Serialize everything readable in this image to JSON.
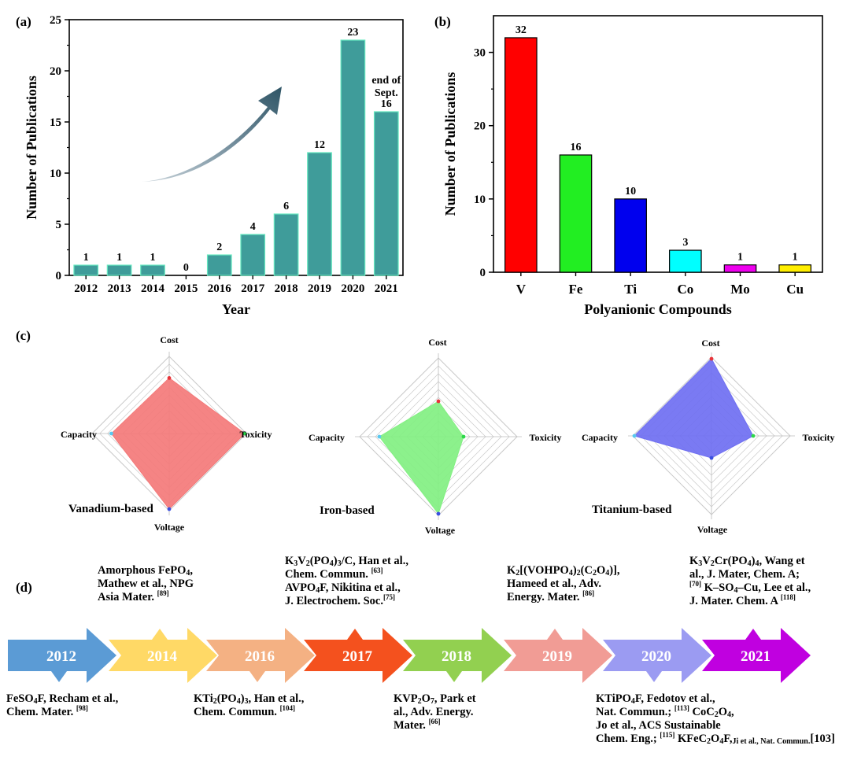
{
  "panel_labels": {
    "a": "(a)",
    "b": "(b)",
    "c": "(c)",
    "d": "(d)"
  },
  "chart_data": [
    {
      "id": "a",
      "type": "bar",
      "title": "",
      "xlabel": "Year",
      "ylabel": "Number of Publications",
      "categories": [
        "2012",
        "2013",
        "2014",
        "2015",
        "2016",
        "2017",
        "2018",
        "2019",
        "2020",
        "2021"
      ],
      "values": [
        1,
        1,
        1,
        0,
        2,
        4,
        6,
        12,
        23,
        16
      ],
      "ylim": [
        0,
        25
      ],
      "yticks": [
        0,
        5,
        10,
        15,
        20,
        25
      ],
      "bar_color": "#3f9c9a",
      "annotation": [
        "end of",
        "Sept."
      ]
    },
    {
      "id": "b",
      "type": "bar",
      "title": "",
      "xlabel": "Polyanionic Compounds",
      "ylabel": "Number of Publications",
      "categories": [
        "V",
        "Fe",
        "Ti",
        "Co",
        "Mo",
        "Cu"
      ],
      "values": [
        32,
        16,
        10,
        3,
        1,
        1
      ],
      "colors": [
        "#ff0000",
        "#22ee22",
        "#0000ee",
        "#00ffff",
        "#ee00ee",
        "#ffee00"
      ],
      "ylim": [
        0,
        35
      ],
      "yticks": [
        0,
        10,
        20,
        30
      ]
    },
    {
      "id": "c",
      "type": "radar",
      "axes": [
        "Cost",
        "Toxicity",
        "Voltage",
        "Capacity"
      ],
      "max": 1,
      "series": [
        {
          "name": "Vanadium-based",
          "values": [
            0.72,
            0.98,
            0.98,
            0.75
          ],
          "color": "#f47a7a"
        },
        {
          "name": "Iron-based",
          "values": [
            0.45,
            0.32,
            0.98,
            0.75
          ],
          "color": "#82f082"
        },
        {
          "name": "Titanium-based",
          "values": [
            0.98,
            0.53,
            0.28,
            0.98
          ],
          "color": "#6f6ff2"
        }
      ]
    }
  ],
  "timeline": {
    "items": [
      {
        "year": "2012",
        "color": "#5b9bd5"
      },
      {
        "year": "2014",
        "color": "#ffd966"
      },
      {
        "year": "2016",
        "color": "#f4b183"
      },
      {
        "year": "2017",
        "color": "#f4511e"
      },
      {
        "year": "2018",
        "color": "#92d050"
      },
      {
        "year": "2019",
        "color": "#f19c95"
      },
      {
        "year": "2020",
        "color": "#9b9bf2"
      },
      {
        "year": "2021",
        "color": "#c000e0"
      }
    ],
    "t2012": [
      "FeSO",
      "4",
      "F, Recham et al.,",
      "Chem. Mater.",
      "[98]"
    ],
    "t2014": [
      "Amorphous FePO",
      "4",
      ",",
      "Mathew et al., NPG",
      "Asia Mater.",
      "[89]"
    ],
    "t2016": [
      "KTi",
      "2",
      "(PO",
      "4",
      ")",
      "3",
      ", Han et al.,",
      "Chem. Commun.",
      "[104]"
    ],
    "t2017": [
      "K",
      "3",
      "V",
      "2",
      "(PO",
      "4",
      ")",
      "3",
      "/C, Han et al.,",
      "Chem. Commun.",
      "[63]",
      "AVPO",
      "4",
      "F, Nikitina et al.,",
      "J. Electrochem. Soc.",
      "[75]"
    ],
    "t2018": [
      "KVP",
      "2",
      "O",
      "7",
      ", Park et",
      "al., Adv. Energy.",
      "Mater.",
      "[66]"
    ],
    "t2019": [
      "K",
      "2",
      "[(VOHPO",
      "4",
      ")",
      "2",
      "(C",
      "2",
      "O",
      "4",
      ")],",
      "Hameed et al., Adv.",
      "Energy. Mater.",
      "[86]"
    ],
    "t2020": [
      "KTiPO",
      "4",
      "F, Fedotov et al.,",
      "Nat. Commun.;",
      "[113]",
      " CoC",
      "2",
      "O",
      "4",
      ",",
      "Jo et al., ACS Sustainable",
      "Chem. Eng.;",
      "[115]",
      " KFeC",
      "2",
      "O",
      "4",
      "F,",
      "Ji et al., Nat. Commun.",
      "[103]"
    ],
    "t2021": [
      "K",
      "3",
      "V",
      "2",
      "Cr(PO",
      "4",
      ")",
      "4",
      ", Wang et",
      "al., J. Mater, Chem. A;",
      "[70]",
      " K–SO",
      "4",
      "–Cu, Lee et al.,",
      "J. Mater. Chem. A",
      "[118]"
    ]
  }
}
